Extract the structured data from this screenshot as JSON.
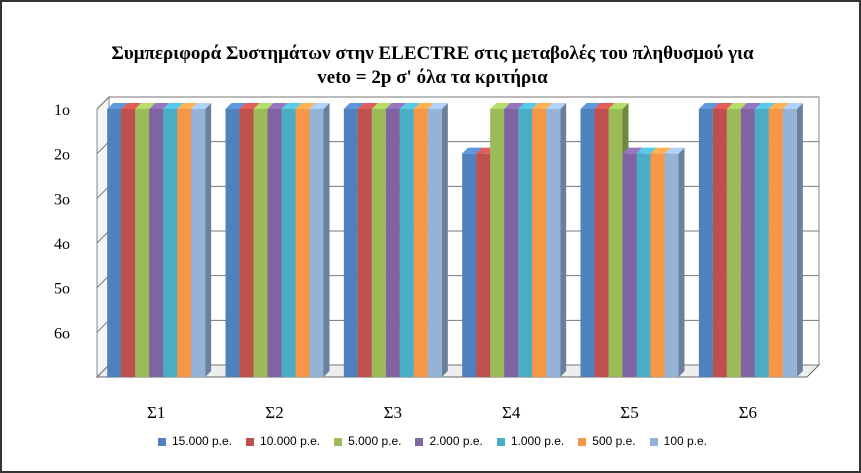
{
  "chart_data": {
    "type": "bar",
    "title_line1": "Συμπεριφορά Συστημάτων στην ELECTRE στις μεταβολές του πληθυσμού για",
    "title_line2": "veto = 2p σ' όλα τα κριτήρια",
    "categories": [
      "Σ1",
      "Σ2",
      "Σ3",
      "Σ4",
      "Σ5",
      "Σ6"
    ],
    "y_tick_labels": [
      "1ο",
      "2ο",
      "3ο",
      "4ο",
      "5ο",
      "6ο"
    ],
    "ylim": [
      1,
      7
    ],
    "y_inverted": true,
    "grid": true,
    "legend_position": "bottom",
    "series": [
      {
        "name": "15.000 p.e.",
        "color": "#4F81BD",
        "values": [
          1,
          1,
          1,
          2,
          1,
          1
        ]
      },
      {
        "name": "10.000 p.e.",
        "color": "#C0504D",
        "values": [
          1,
          1,
          1,
          2,
          1,
          1
        ]
      },
      {
        "name": "5.000 p.e.",
        "color": "#9BBB59",
        "values": [
          1,
          1,
          1,
          1,
          1,
          1
        ]
      },
      {
        "name": "2.000 p.e.",
        "color": "#8064A2",
        "values": [
          1,
          1,
          1,
          1,
          2,
          1
        ]
      },
      {
        "name": "1.000 p.e.",
        "color": "#4BACC6",
        "values": [
          1,
          1,
          1,
          1,
          2,
          1
        ]
      },
      {
        "name": "500 p.e.",
        "color": "#F79646",
        "values": [
          1,
          1,
          1,
          1,
          2,
          1
        ]
      },
      {
        "name": "100 p.e.",
        "color": "#95B3D7",
        "values": [
          1,
          1,
          1,
          1,
          2,
          1
        ]
      }
    ]
  }
}
